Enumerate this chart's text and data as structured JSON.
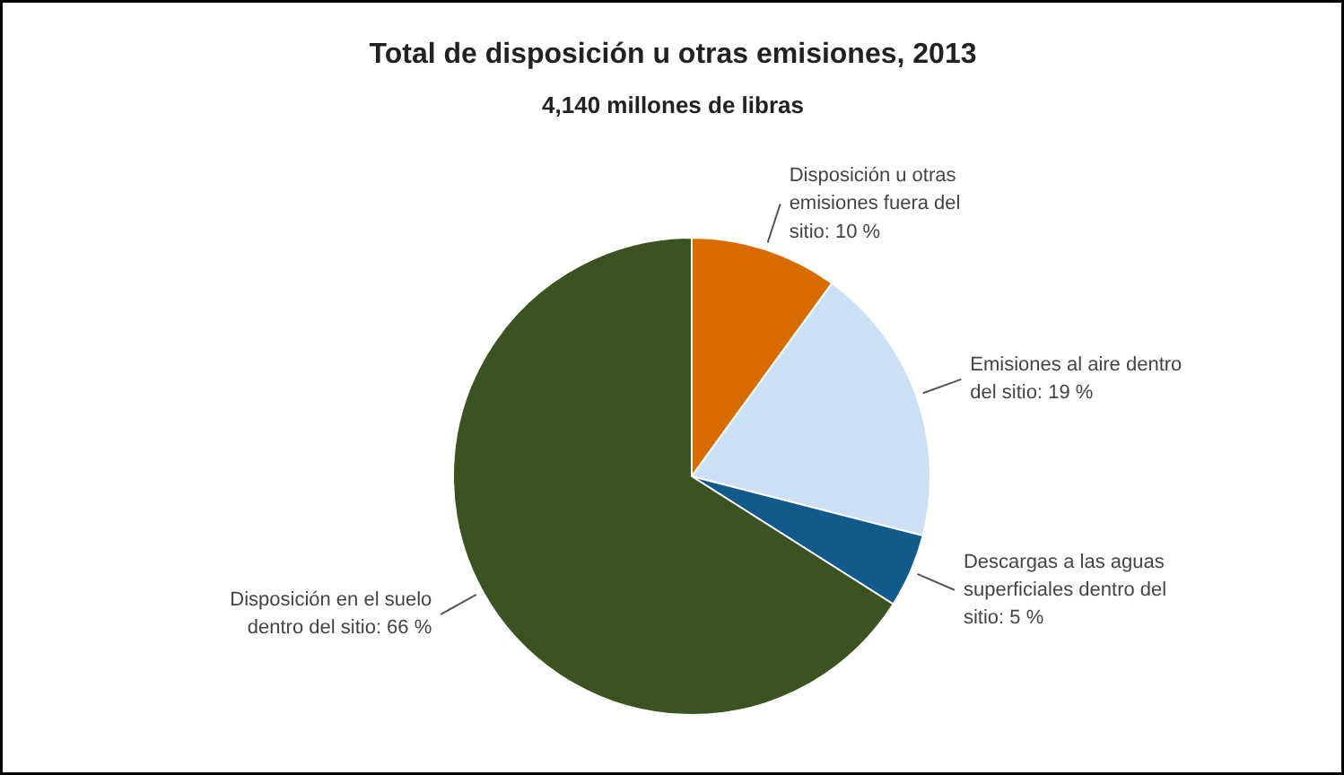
{
  "chart_data": {
    "type": "pie",
    "title": "Total de disposición u otras emisiones, 2013",
    "subtitle": "4,140 millones de libras",
    "categories": [
      "Disposición u otras emisiones fuera del sitio",
      "Emisiones al aire dentro del sitio",
      "Descargas a las aguas superficiales dentro del sitio",
      "Disposición en el suelo dentro del sitio"
    ],
    "values": [
      10,
      19,
      5,
      66
    ],
    "value_labels": [
      "10 %",
      "19 %",
      "5 %",
      "66 %"
    ],
    "colors": [
      "#d96c00",
      "#cce0f5",
      "#135a8c",
      "#3a5320"
    ],
    "legend": false
  }
}
